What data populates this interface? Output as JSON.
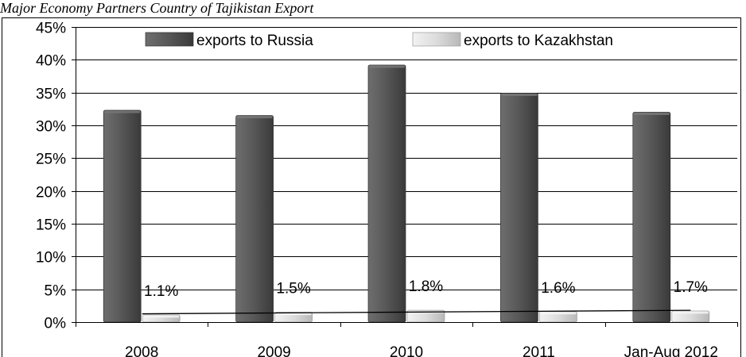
{
  "caption": "Major Economy Partners Country of Tajikistan Export",
  "chart_data": {
    "type": "bar",
    "categories": [
      "2008",
      "2009",
      "2010",
      "2011",
      "Jan-Aug 2012"
    ],
    "series": [
      {
        "name": "exports to Russia",
        "values": [
          32.3,
          31.5,
          39.2,
          34.9,
          32.0
        ],
        "color": "#4d4d4d"
      },
      {
        "name": "exports to Kazakhstan",
        "values": [
          1.1,
          1.5,
          1.8,
          1.6,
          1.7
        ],
        "color": "#d4d4d4",
        "data_labels": [
          "1.1%",
          "1.5%",
          "1.8%",
          "1.6%",
          "1.7%"
        ]
      }
    ],
    "yticks": [
      "0%",
      "5%",
      "10%",
      "15%",
      "20%",
      "25%",
      "30%",
      "35%",
      "40%",
      "45%"
    ],
    "ylim": [
      0,
      45
    ],
    "trendline": {
      "series": "exports to Kazakhstan",
      "type": "linear"
    },
    "legend": "top",
    "grid": true
  }
}
